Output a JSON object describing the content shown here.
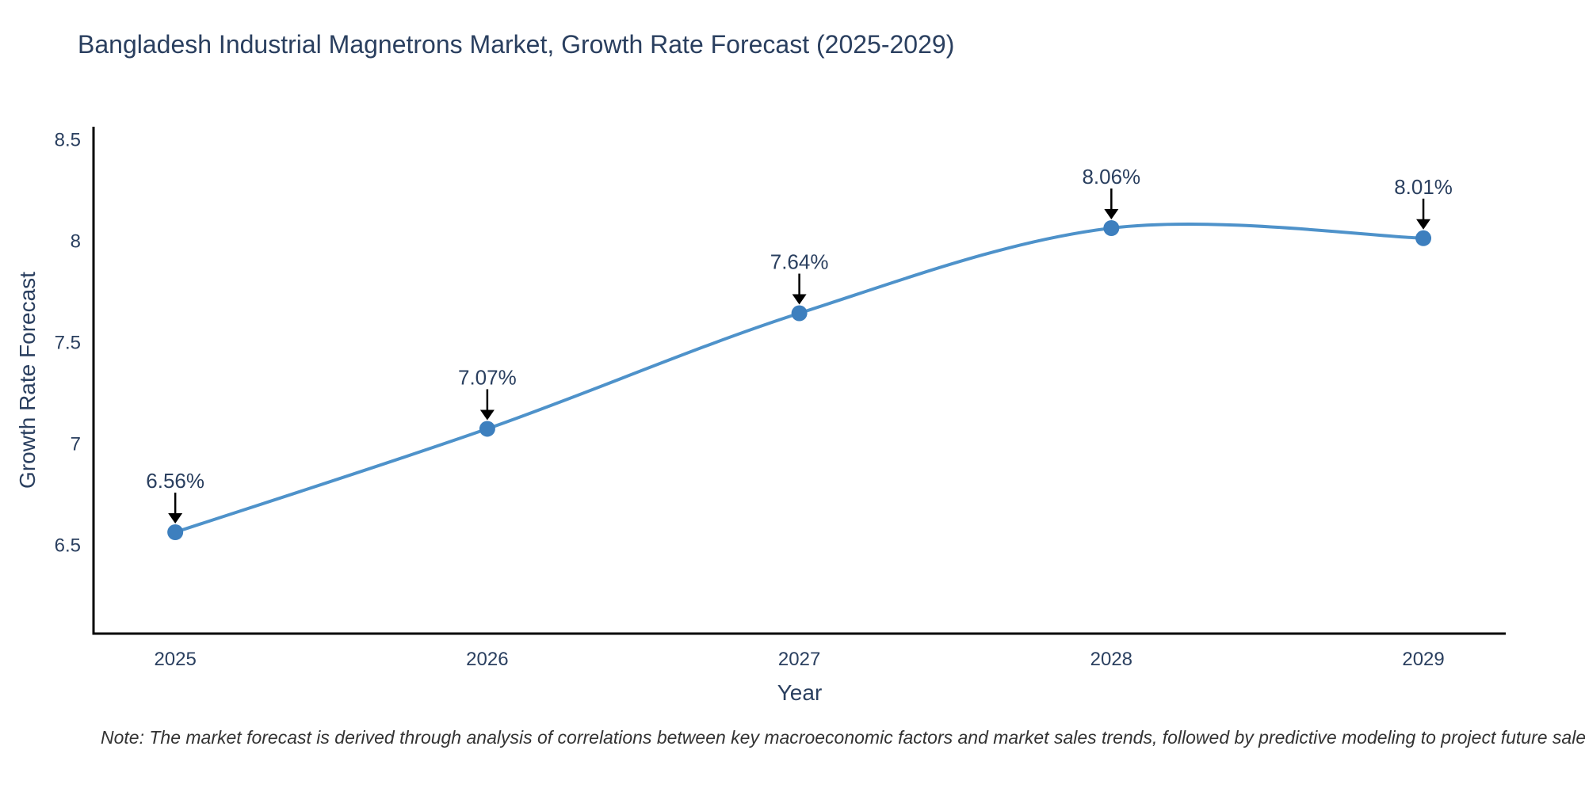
{
  "title": "Bangladesh Industrial Magnetrons Market, Growth Rate Forecast (2025-2029)",
  "note": "Note: The market forecast is derived through analysis of correlations between key macroeconomic factors and market sales trends, followed by predictive modeling to project future sales",
  "chart_data": {
    "type": "line",
    "title": "Bangladesh Industrial Magnetrons Market, Growth Rate Forecast (2025-2029)",
    "x": [
      2025,
      2026,
      2027,
      2028,
      2029
    ],
    "x_tick_labels": [
      "2025",
      "2026",
      "2027",
      "2028",
      "2029"
    ],
    "series": [
      {
        "name": "Growth Rate Forecast",
        "values": [
          6.56,
          7.07,
          7.64,
          8.06,
          8.01
        ]
      }
    ],
    "point_labels": [
      "6.56%",
      "7.07%",
      "7.64%",
      "8.06%",
      "8.01%"
    ],
    "xlabel": "Year",
    "ylabel": "Growth Rate Forecast",
    "y_ticks": [
      6.5,
      7,
      7.5,
      8,
      8.5
    ],
    "ylim": [
      6.06,
      8.56
    ],
    "xlim": [
      2024.738,
      2029.264
    ],
    "grid": false,
    "legend": "none",
    "line_style": "spline",
    "colors": {
      "line": "#4e92ca",
      "marker": "#3d7fbe",
      "axis": "#000000",
      "tick_text": "#2a3f5f",
      "title_text": "#2a3f5f",
      "annotation_text": "#2a3f5f",
      "annotation_arrow": "#000000",
      "note_text": "#333333"
    }
  }
}
